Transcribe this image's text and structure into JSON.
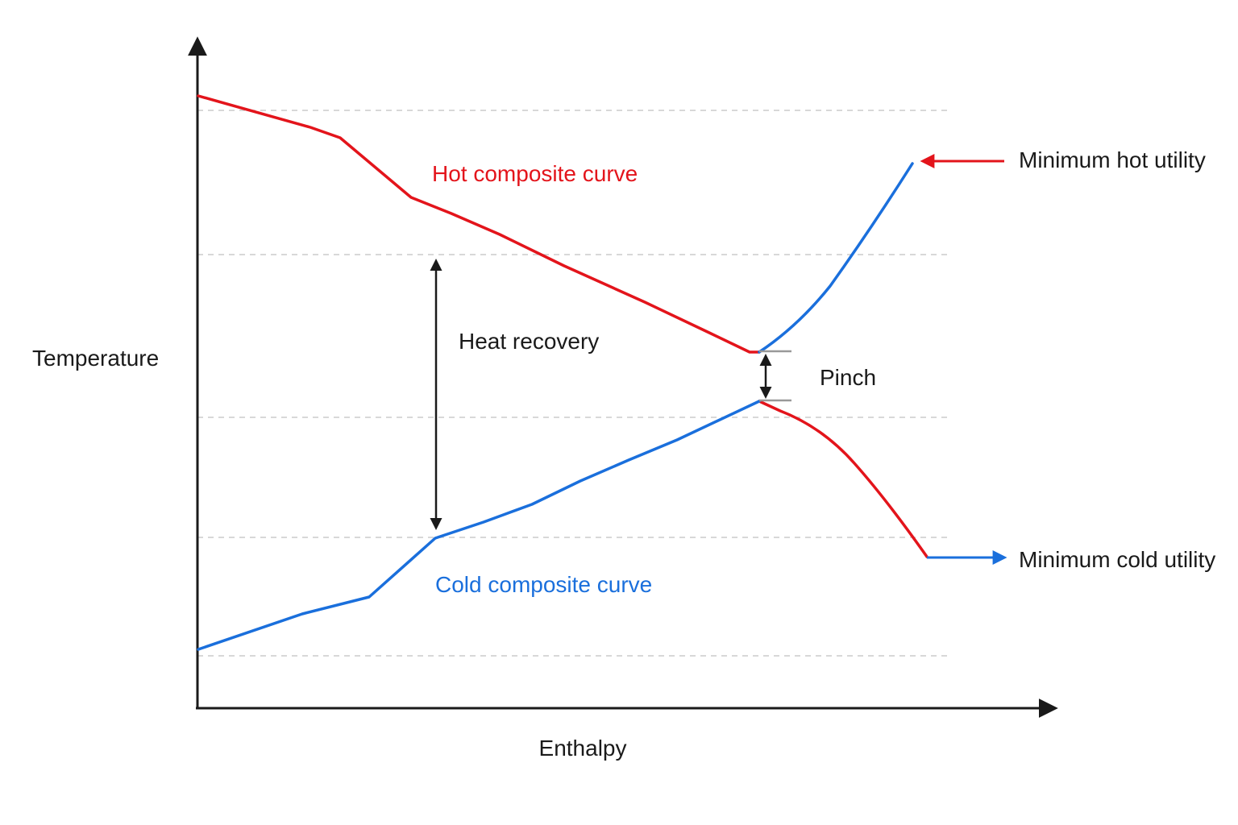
{
  "diagram": {
    "y_axis_label": "Temperature",
    "x_axis_label": "Enthalpy",
    "labels": {
      "hot_curve": "Hot composite curve",
      "cold_curve": "Cold composite curve",
      "heat_recovery": "Heat recovery",
      "pinch": "Pinch",
      "min_hot_utility": "Minimum hot utility",
      "min_cold_utility": "Minimum cold utility"
    },
    "colors": {
      "hot": "#e3141b",
      "cold": "#1a6fdc",
      "axis": "#1a1a1a",
      "grid": "#cccccc",
      "text": "#1a1a1a"
    }
  }
}
